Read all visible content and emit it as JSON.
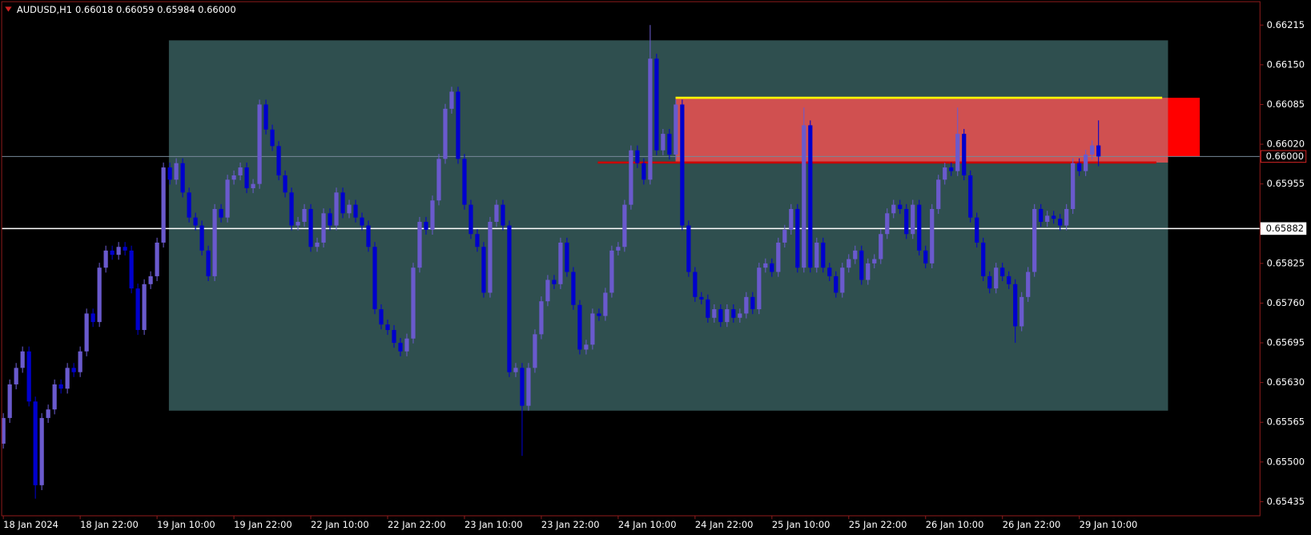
{
  "chart_data": {
    "type": "candlestick",
    "title": "AUDUSD,H1",
    "subtitle": "0.66018 0.66059 0.65984 0.66000",
    "up_color": "#6a5acd",
    "down_color": "#0000cd",
    "ylim": [
      0.65412,
      0.66256
    ],
    "yticks": [
      0.66215,
      {
        "value": 0.6615,
        "label": "0.66150"
      },
      0.66085,
      {
        "value": 0.6602,
        "label": "0.66020"
      },
      0.65955,
      0.65825,
      {
        "value": 0.6576,
        "label": "0.65760"
      },
      0.65695,
      {
        "value": 0.6563,
        "label": "0.65630"
      },
      0.65565,
      {
        "value": 0.655,
        "label": "0.65500"
      },
      0.65435
    ],
    "categories": [
      "18 Jan 2024",
      null,
      null,
      null,
      null,
      null,
      null,
      null,
      null,
      null,
      null,
      null,
      "18 Jan 22:00",
      null,
      null,
      null,
      null,
      null,
      null,
      null,
      null,
      null,
      null,
      null,
      "19 Jan 10:00",
      null,
      null,
      null,
      null,
      null,
      null,
      null,
      null,
      null,
      null,
      null,
      "19 Jan 22:00",
      null,
      null,
      null,
      null,
      null,
      null,
      null,
      null,
      null,
      null,
      null,
      "22 Jan 10:00",
      null,
      null,
      null,
      null,
      null,
      null,
      null,
      null,
      null,
      null,
      null,
      "22 Jan 22:00",
      null,
      null,
      null,
      null,
      null,
      null,
      null,
      null,
      null,
      null,
      null,
      "23 Jan 10:00",
      null,
      null,
      null,
      null,
      null,
      null,
      null,
      null,
      null,
      null,
      null,
      "23 Jan 22:00",
      null,
      null,
      null,
      null,
      null,
      null,
      null,
      null,
      null,
      null,
      null,
      "24 Jan 10:00",
      null,
      null,
      null,
      null,
      null,
      null,
      null,
      null,
      null,
      null,
      null,
      "24 Jan 22:00",
      null,
      null,
      null,
      null,
      null,
      null,
      null,
      null,
      null,
      null,
      null,
      "25 Jan 10:00",
      null,
      null,
      null,
      null,
      null,
      null,
      null,
      null,
      null,
      null,
      null,
      "25 Jan 22:00",
      null,
      null,
      null,
      null,
      null,
      null,
      null,
      null,
      null,
      null,
      null,
      "26 Jan 10:00",
      null,
      null,
      null,
      null,
      null,
      null,
      null,
      null,
      null,
      null,
      null,
      "26 Jan 22:00",
      null,
      null,
      null,
      null,
      null,
      null,
      null,
      null,
      null,
      null,
      null,
      "29 Jan 10:00",
      null,
      null,
      null
    ],
    "open": [
      0.6553,
      0.65572,
      0.65627,
      0.65654,
      0.65681,
      0.65599,
      0.65462,
      0.65572,
      0.65586,
      0.65627,
      0.6562,
      0.65654,
      0.65647,
      0.65681,
      0.65743,
      0.65729,
      0.65818,
      0.65846,
      0.65839,
      0.65852,
      0.65846,
      0.65784,
      0.65716,
      0.65791,
      0.65804,
      0.65859,
      0.65982,
      0.65962,
      0.65989,
      0.65941,
      0.659,
      0.65887,
      0.65846,
      0.65804,
      0.65914,
      0.659,
      0.65962,
      0.65969,
      0.65982,
      0.65948,
      0.65955,
      0.66085,
      0.66044,
      0.66017,
      0.65969,
      0.65941,
      0.65887,
      0.65893,
      0.65914,
      0.65852,
      0.65859,
      0.65907,
      0.65887,
      0.65941,
      0.65907,
      0.65921,
      0.659,
      0.65887,
      0.65852,
      0.6575,
      0.65725,
      0.65716,
      0.65695,
      0.65681,
      0.65702,
      0.65818,
      0.65893,
      0.6588,
      0.65928,
      0.65996,
      0.66078,
      0.66106,
      0.65996,
      0.65921,
      0.65873,
      0.65852,
      0.65777,
      0.65893,
      0.65921,
      0.65887,
      0.65647,
      0.65654,
      0.65592,
      0.65654,
      0.65709,
      0.65763,
      0.65798,
      0.65791,
      0.65859,
      0.65811,
      0.65757,
      0.65684,
      0.65692,
      0.65743,
      0.65739,
      0.65777,
      0.65846,
      0.65852,
      0.65921,
      0.6601,
      0.65989,
      0.65962,
      0.6616,
      0.6601,
      0.66037,
      0.66003,
      0.66085,
      0.65887,
      0.65811,
      0.6577,
      0.65766,
      0.65736,
      0.6575,
      0.65729,
      0.6575,
      0.65736,
      0.65743,
      0.6577,
      0.6575,
      0.65818,
      0.65825,
      0.65811,
      0.65859,
      0.6588,
      0.65914,
      0.65818,
      0.66051,
      0.65818,
      0.65859,
      0.65818,
      0.65804,
      0.65777,
      0.65818,
      0.65832,
      0.65846,
      0.65798,
      0.65825,
      0.65832,
      0.65873,
      0.65907,
      0.65921,
      0.65914,
      0.65873,
      0.65921,
      0.65846,
      0.65825,
      0.65914,
      0.65962,
      0.65982,
      0.65976,
      0.66037,
      0.65969,
      0.659,
      0.65859,
      0.65804,
      0.65784,
      0.65818,
      0.65804,
      0.65791,
      0.65722,
      0.6577,
      0.65811,
      0.65914,
      0.65893,
      0.65903,
      0.65898,
      0.65887,
      0.65914,
      0.65989,
      0.65976,
      0.66003,
      0.66018
    ],
    "high": [
      0.6558,
      0.65635,
      0.65662,
      0.65689,
      0.65689,
      0.65607,
      0.6558,
      0.65594,
      0.65635,
      0.65635,
      0.65662,
      0.65662,
      0.65689,
      0.65751,
      0.65751,
      0.65826,
      0.65854,
      0.65854,
      0.6586,
      0.6586,
      0.65854,
      0.65792,
      0.65799,
      0.65812,
      0.65867,
      0.6599,
      0.6599,
      0.65997,
      0.65997,
      0.65949,
      0.65908,
      0.65895,
      0.65854,
      0.65922,
      0.65922,
      0.6597,
      0.65977,
      0.6599,
      0.6599,
      0.65963,
      0.66093,
      0.66093,
      0.66052,
      0.66025,
      0.65977,
      0.65949,
      0.65901,
      0.65922,
      0.65922,
      0.65867,
      0.65915,
      0.65915,
      0.65949,
      0.65949,
      0.65929,
      0.65929,
      0.65908,
      0.65895,
      0.6586,
      0.65758,
      0.65733,
      0.65724,
      0.65703,
      0.6571,
      0.65826,
      0.65901,
      0.65901,
      0.65936,
      0.66004,
      0.66086,
      0.66114,
      0.66114,
      0.66004,
      0.65929,
      0.65881,
      0.6586,
      0.65901,
      0.65929,
      0.65929,
      0.65895,
      0.65662,
      0.65662,
      0.65662,
      0.65717,
      0.65771,
      0.65806,
      0.65806,
      0.65867,
      0.65867,
      0.65819,
      0.65765,
      0.657,
      0.65751,
      0.65751,
      0.65785,
      0.65854,
      0.6586,
      0.65929,
      0.66018,
      0.66018,
      0.65997,
      0.66215,
      0.66168,
      0.66045,
      0.66045,
      0.66093,
      0.66093,
      0.65895,
      0.65819,
      0.65778,
      0.65774,
      0.65758,
      0.65758,
      0.65758,
      0.65758,
      0.65751,
      0.65778,
      0.65778,
      0.65826,
      0.65833,
      0.65833,
      0.65867,
      0.65888,
      0.65922,
      0.65922,
      0.6608,
      0.66059,
      0.65867,
      0.65867,
      0.65826,
      0.65812,
      0.65826,
      0.6584,
      0.65854,
      0.65854,
      0.65833,
      0.6584,
      0.65881,
      0.65915,
      0.65929,
      0.65929,
      0.65922,
      0.65929,
      0.65929,
      0.65854,
      0.65922,
      0.6597,
      0.6599,
      0.6599,
      0.6608,
      0.66045,
      0.65977,
      0.65908,
      0.65867,
      0.65812,
      0.65826,
      0.65826,
      0.65812,
      0.65799,
      0.65778,
      0.65819,
      0.65922,
      0.65922,
      0.65911,
      0.65911,
      0.65906,
      0.65922,
      0.65997,
      0.65997,
      0.66011,
      0.66026,
      0.66059
    ],
    "low": [
      0.65522,
      0.65564,
      0.65619,
      0.65646,
      0.65591,
      0.6544,
      0.65454,
      0.65564,
      0.65578,
      0.65612,
      0.65612,
      0.65639,
      0.65639,
      0.65673,
      0.65721,
      0.65721,
      0.6581,
      0.65831,
      0.65831,
      0.65838,
      0.65776,
      0.65708,
      0.65708,
      0.65783,
      0.65796,
      0.65851,
      0.65954,
      0.65954,
      0.65933,
      0.65892,
      0.65879,
      0.65838,
      0.65796,
      0.65796,
      0.65892,
      0.65892,
      0.65954,
      0.65961,
      0.6594,
      0.6594,
      0.65947,
      0.66036,
      0.66009,
      0.65961,
      0.65933,
      0.65879,
      0.65879,
      0.65885,
      0.65844,
      0.65844,
      0.65851,
      0.65879,
      0.65879,
      0.65899,
      0.65899,
      0.65892,
      0.65879,
      0.65844,
      0.65742,
      0.65717,
      0.65708,
      0.65687,
      0.65673,
      0.65673,
      0.65694,
      0.6581,
      0.65872,
      0.65872,
      0.6592,
      0.65988,
      0.6607,
      0.65988,
      0.65913,
      0.65865,
      0.65844,
      0.65769,
      0.65769,
      0.65885,
      0.65879,
      0.65639,
      0.65639,
      0.6551,
      0.65584,
      0.65646,
      0.65701,
      0.65755,
      0.65783,
      0.65783,
      0.65803,
      0.65749,
      0.65676,
      0.65676,
      0.65684,
      0.65731,
      0.65731,
      0.65769,
      0.65838,
      0.65844,
      0.65913,
      0.65981,
      0.65954,
      0.65954,
      0.66002,
      0.66002,
      0.65995,
      0.65995,
      0.65879,
      0.65803,
      0.65762,
      0.65758,
      0.65728,
      0.65728,
      0.65721,
      0.65721,
      0.65728,
      0.65728,
      0.65735,
      0.65742,
      0.65742,
      0.6581,
      0.65803,
      0.65803,
      0.65851,
      0.65872,
      0.6581,
      0.6581,
      0.6581,
      0.6581,
      0.6581,
      0.65796,
      0.65769,
      0.65769,
      0.6581,
      0.65824,
      0.6579,
      0.6579,
      0.65817,
      0.65824,
      0.65865,
      0.65899,
      0.65906,
      0.65865,
      0.65865,
      0.65838,
      0.65817,
      0.65817,
      0.65906,
      0.65954,
      0.65968,
      0.65968,
      0.65961,
      0.65892,
      0.65851,
      0.65796,
      0.65776,
      0.65776,
      0.65796,
      0.65783,
      0.65695,
      0.65714,
      0.65762,
      0.65803,
      0.65885,
      0.65885,
      0.6589,
      0.65879,
      0.65879,
      0.65906,
      0.65968,
      0.65968,
      0.65995,
      0.65984
    ],
    "close": [
      0.65572,
      0.65627,
      0.65654,
      0.65681,
      0.65599,
      0.65462,
      0.65572,
      0.65586,
      0.65627,
      0.6562,
      0.65654,
      0.65647,
      0.65681,
      0.65743,
      0.65729,
      0.65818,
      0.65846,
      0.65839,
      0.65852,
      0.65846,
      0.65784,
      0.65716,
      0.65791,
      0.65804,
      0.65859,
      0.65982,
      0.65962,
      0.65989,
      0.65941,
      0.659,
      0.65887,
      0.65846,
      0.65804,
      0.65914,
      0.659,
      0.65962,
      0.65969,
      0.65982,
      0.65948,
      0.65955,
      0.66085,
      0.66044,
      0.66017,
      0.65969,
      0.65941,
      0.65887,
      0.65893,
      0.65914,
      0.65852,
      0.65859,
      0.65907,
      0.65887,
      0.65941,
      0.65907,
      0.65921,
      0.659,
      0.65887,
      0.65852,
      0.6575,
      0.65725,
      0.65716,
      0.65695,
      0.65681,
      0.65702,
      0.65818,
      0.65893,
      0.6588,
      0.65928,
      0.65996,
      0.66078,
      0.66106,
      0.65996,
      0.65921,
      0.65873,
      0.65852,
      0.65777,
      0.65893,
      0.65921,
      0.65887,
      0.65647,
      0.65654,
      0.65592,
      0.65654,
      0.65709,
      0.65763,
      0.65798,
      0.65791,
      0.65859,
      0.65811,
      0.65757,
      0.65684,
      0.65692,
      0.65743,
      0.65739,
      0.65777,
      0.65846,
      0.65852,
      0.65921,
      0.6601,
      0.65989,
      0.65962,
      0.6616,
      0.6601,
      0.66037,
      0.66003,
      0.66085,
      0.65887,
      0.65811,
      0.6577,
      0.65766,
      0.65736,
      0.6575,
      0.65729,
      0.6575,
      0.65736,
      0.65743,
      0.6577,
      0.6575,
      0.65818,
      0.65825,
      0.65811,
      0.65859,
      0.6588,
      0.65914,
      0.65818,
      0.66051,
      0.65818,
      0.65859,
      0.65818,
      0.65804,
      0.65777,
      0.65818,
      0.65832,
      0.65846,
      0.65798,
      0.65825,
      0.65832,
      0.65873,
      0.65907,
      0.65921,
      0.65914,
      0.65873,
      0.65921,
      0.65846,
      0.65825,
      0.65914,
      0.65962,
      0.65982,
      0.65976,
      0.66037,
      0.65969,
      0.659,
      0.65859,
      0.65804,
      0.65784,
      0.65818,
      0.65804,
      0.65791,
      0.65722,
      0.6577,
      0.65811,
      0.65914,
      0.65893,
      0.65903,
      0.65898,
      0.65887,
      0.65914,
      0.65989,
      0.65976,
      0.66003,
      0.66018,
      0.66
    ],
    "zones": [
      {
        "top": 0.6619,
        "bottom": 0.65584,
        "color": "#2f4f4f"
      },
      {
        "top": 0.66096,
        "bottom": 0.6599,
        "color": "#d05050"
      },
      {
        "top": 0.66096,
        "bottom": 0.66,
        "color": "#ff0000"
      }
    ],
    "levels": [
      {
        "value": 0.66096,
        "color": "#ffff00"
      },
      {
        "value": 0.6599,
        "color": "#cc0000"
      }
    ],
    "price_lines": [
      {
        "value": 0.66,
        "label": "0.66000",
        "color": "#778899"
      },
      {
        "value": 0.65882,
        "label": "0.65882",
        "color": "#ffffff"
      }
    ]
  }
}
